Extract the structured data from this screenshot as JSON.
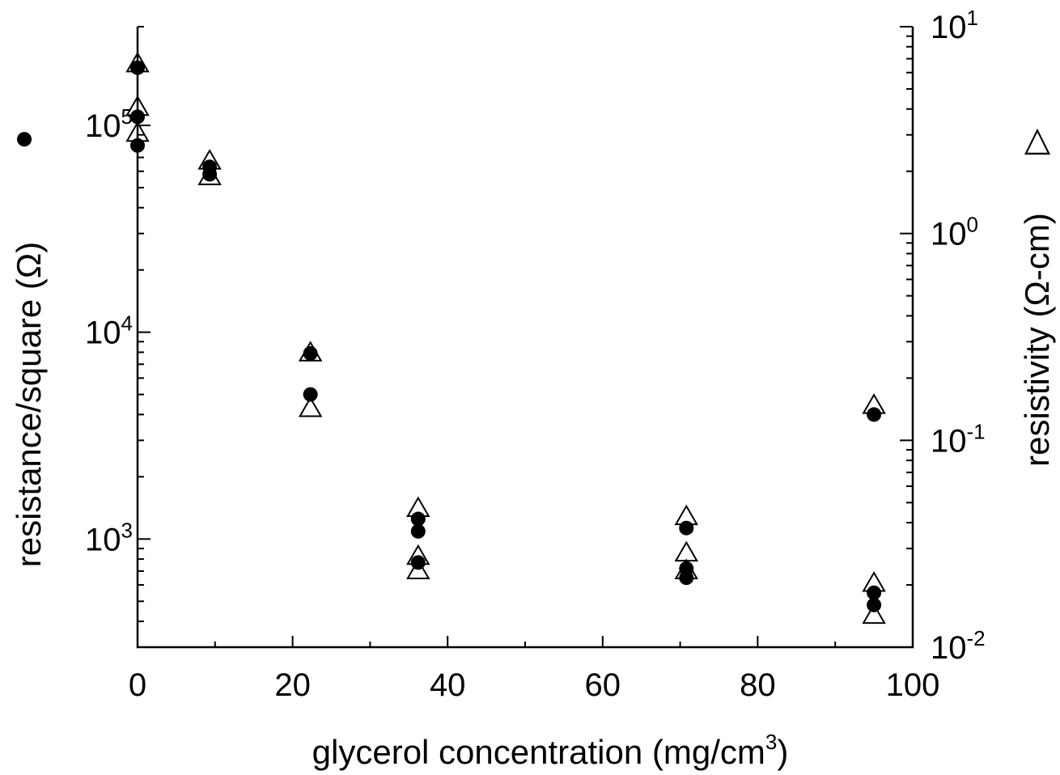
{
  "chart_data": {
    "type": "scatter",
    "title": "",
    "xlabel": {
      "main": "glycerol concentration  (mg/cm",
      "sup": "3",
      "tail": ")"
    },
    "ylabel_left": {
      "main": "resistance/square   (Ω)",
      "marker": "●"
    },
    "ylabel_right": {
      "main": "resistivity (Ω-cm)",
      "marker": "△"
    },
    "xlim": [
      0,
      100
    ],
    "ylim_left": [
      300,
      300000
    ],
    "ylim_right": [
      0.01,
      10
    ],
    "yscale": "log",
    "x_ticks": [
      {
        "value": 0,
        "label": "0"
      },
      {
        "value": 20,
        "label": "20"
      },
      {
        "value": 40,
        "label": "40"
      },
      {
        "value": 60,
        "label": "60"
      },
      {
        "value": 80,
        "label": "80"
      },
      {
        "value": 100,
        "label": "100"
      }
    ],
    "left_ticks": [
      {
        "value": 1000,
        "base": "10",
        "exp": "3"
      },
      {
        "value": 10000,
        "base": "10",
        "exp": "4"
      },
      {
        "value": 100000,
        "base": "10",
        "exp": "5"
      }
    ],
    "right_ticks": [
      {
        "value": 0.01,
        "base": "10",
        "exp": "-2"
      },
      {
        "value": 0.1,
        "base": "10",
        "exp": "-1"
      },
      {
        "value": 1,
        "base": "10",
        "exp": "0"
      },
      {
        "value": 10,
        "base": "10",
        "exp": "1"
      }
    ],
    "series": [
      {
        "axis": "left",
        "marker": "filled-circle",
        "points": [
          {
            "x": 0,
            "y": 190000
          },
          {
            "x": 0,
            "y": 110000
          },
          {
            "x": 0,
            "y": 80000
          },
          {
            "x": 9.3,
            "y": 63000
          },
          {
            "x": 9.3,
            "y": 58000
          },
          {
            "x": 22.3,
            "y": 7900
          },
          {
            "x": 22.3,
            "y": 5000
          },
          {
            "x": 36.2,
            "y": 1250
          },
          {
            "x": 36.2,
            "y": 1090
          },
          {
            "x": 36.2,
            "y": 770
          },
          {
            "x": 70.8,
            "y": 1130
          },
          {
            "x": 70.8,
            "y": 720
          },
          {
            "x": 70.8,
            "y": 650
          },
          {
            "x": 95,
            "y": 4000
          },
          {
            "x": 95,
            "y": 550
          },
          {
            "x": 95,
            "y": 480
          }
        ]
      },
      {
        "axis": "right",
        "marker": "open-triangle",
        "points": [
          {
            "x": 0,
            "y": 6.5
          },
          {
            "x": 0,
            "y": 4.0
          },
          {
            "x": 0,
            "y": 3.0
          },
          {
            "x": 9.3,
            "y": 2.2
          },
          {
            "x": 9.3,
            "y": 1.85
          },
          {
            "x": 22.3,
            "y": 0.26
          },
          {
            "x": 22.3,
            "y": 0.14
          },
          {
            "x": 36.2,
            "y": 0.046
          },
          {
            "x": 36.2,
            "y": 0.027
          },
          {
            "x": 36.2,
            "y": 0.023
          },
          {
            "x": 70.8,
            "y": 0.042
          },
          {
            "x": 70.8,
            "y": 0.028
          },
          {
            "x": 70.8,
            "y": 0.023
          },
          {
            "x": 95,
            "y": 0.145
          },
          {
            "x": 95,
            "y": 0.02
          },
          {
            "x": 95,
            "y": 0.014
          }
        ]
      }
    ]
  }
}
